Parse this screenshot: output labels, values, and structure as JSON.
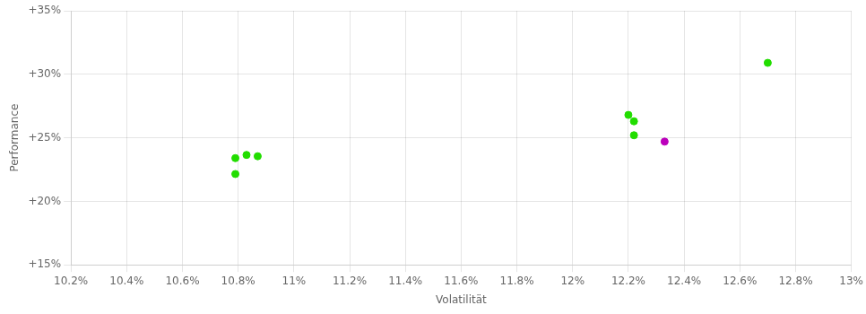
{
  "chart_data": {
    "type": "scatter",
    "xlabel": "Volatilität",
    "ylabel": "Performance",
    "xlim": [
      0.102,
      0.13
    ],
    "ylim": [
      0.15,
      0.35
    ],
    "xticks": [
      {
        "value": 0.102,
        "label": "10.2%"
      },
      {
        "value": 0.104,
        "label": "10.4%"
      },
      {
        "value": 0.106,
        "label": "10.6%"
      },
      {
        "value": 0.108,
        "label": "10.8%"
      },
      {
        "value": 0.11,
        "label": "11%"
      },
      {
        "value": 0.112,
        "label": "11.2%"
      },
      {
        "value": 0.114,
        "label": "11.4%"
      },
      {
        "value": 0.116,
        "label": "11.6%"
      },
      {
        "value": 0.118,
        "label": "11.8%"
      },
      {
        "value": 0.12,
        "label": "12%"
      },
      {
        "value": 0.122,
        "label": "12.2%"
      },
      {
        "value": 0.124,
        "label": "12.4%"
      },
      {
        "value": 0.126,
        "label": "12.6%"
      },
      {
        "value": 0.128,
        "label": "12.8%"
      },
      {
        "value": 0.13,
        "label": "13%"
      }
    ],
    "yticks": [
      {
        "value": 0.15,
        "label": "+15%"
      },
      {
        "value": 0.2,
        "label": "+20%"
      },
      {
        "value": 0.25,
        "label": "+25%"
      },
      {
        "value": 0.3,
        "label": "+30%"
      },
      {
        "value": 0.35,
        "label": "+35%"
      }
    ],
    "grid": true,
    "series": [
      {
        "color": "#22dd00",
        "x": [
          0.1079,
          0.1083,
          0.1087,
          0.1079,
          0.122,
          0.1222,
          0.1222,
          0.127
        ],
        "values": [
          0.234,
          0.2365,
          0.2355,
          0.2215,
          0.268,
          0.263,
          0.252,
          0.309
        ]
      },
      {
        "color": "#bb00bb",
        "x": [
          0.1233
        ],
        "values": [
          0.247
        ]
      }
    ]
  }
}
